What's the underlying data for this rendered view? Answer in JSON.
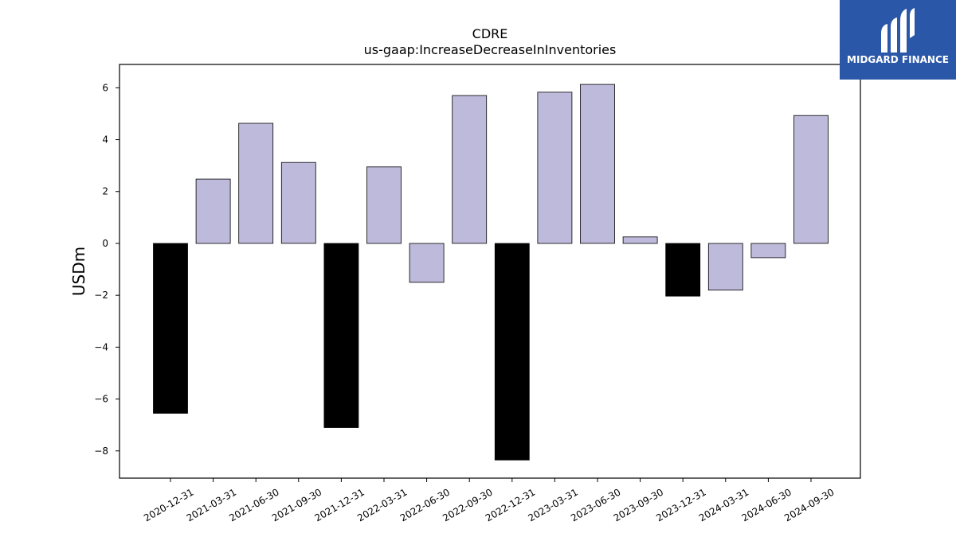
{
  "brand": {
    "name": "MIDGARD FINANCE",
    "icon": "midgard-logo-icon",
    "background": "#2b57a8"
  },
  "chart_data": {
    "type": "bar",
    "title": "CDRE",
    "subtitle": "us-gaap:IncreaseDecreaseInInventories",
    "xlabel": "",
    "ylabel": "USDm",
    "categories": [
      "2020-12-31",
      "2021-03-31",
      "2021-06-30",
      "2021-09-30",
      "2021-12-31",
      "2022-03-31",
      "2022-06-30",
      "2022-09-30",
      "2022-12-31",
      "2023-03-31",
      "2023-06-30",
      "2023-09-30",
      "2023-12-31",
      "2024-03-31",
      "2024-06-30",
      "2024-09-30"
    ],
    "values": [
      -6.55,
      2.48,
      4.63,
      3.12,
      -7.1,
      2.95,
      -1.5,
      5.7,
      -8.35,
      5.83,
      6.13,
      0.25,
      -2.03,
      -1.8,
      -0.55,
      4.93
    ],
    "bar_colors": [
      "#000000",
      "#bebadb",
      "#bebadb",
      "#bebadb",
      "#000000",
      "#bebadb",
      "#bebadb",
      "#bebadb",
      "#000000",
      "#bebadb",
      "#bebadb",
      "#bebadb",
      "#000000",
      "#bebadb",
      "#bebadb",
      "#bebadb"
    ],
    "yticks": [
      -8,
      -6,
      -4,
      -2,
      0,
      2,
      4,
      6
    ],
    "ytick_labels": [
      "−8",
      "−6",
      "−4",
      "−2",
      "0",
      "2",
      "4",
      "6"
    ],
    "ylim": [
      -9.05,
      6.9
    ],
    "grid": false,
    "legend": "none"
  }
}
